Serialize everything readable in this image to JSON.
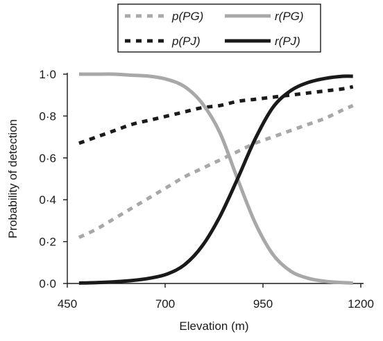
{
  "chart_data": {
    "type": "line",
    "xlabel": "Elevation (m)",
    "ylabel": "Probability of detection",
    "xlim": [
      450,
      1200
    ],
    "ylim": [
      0,
      1
    ],
    "x_ticks": [
      450,
      700,
      950,
      1200
    ],
    "x_tick_labels": [
      "450",
      "700",
      "950",
      "1200"
    ],
    "y_ticks": [
      0,
      0.2,
      0.4,
      0.6,
      0.8,
      1.0
    ],
    "y_tick_labels": [
      "0·0",
      "0·2",
      "0·4",
      "0·6",
      "0·8",
      "1·0"
    ],
    "legend_position": "top, above plot, two columns",
    "x": [
      480,
      525,
      570,
      615,
      660,
      705,
      750,
      795,
      840,
      885,
      930,
      975,
      1020,
      1065,
      1110,
      1155,
      1180
    ],
    "series": [
      {
        "name": "p(PG)",
        "legend_label": "p(PG)",
        "color": "#a8a8a8",
        "dash": "dashed",
        "values": [
          0.22,
          0.26,
          0.31,
          0.36,
          0.41,
          0.46,
          0.51,
          0.55,
          0.59,
          0.63,
          0.67,
          0.7,
          0.73,
          0.76,
          0.79,
          0.83,
          0.85
        ]
      },
      {
        "name": "p(PJ)",
        "legend_label": "p(PJ)",
        "color": "#1a1a1a",
        "dash": "dashed",
        "values": [
          0.67,
          0.7,
          0.73,
          0.76,
          0.78,
          0.8,
          0.82,
          0.84,
          0.85,
          0.87,
          0.88,
          0.89,
          0.9,
          0.91,
          0.92,
          0.93,
          0.94
        ]
      },
      {
        "name": "r(PG)",
        "legend_label": "r(PG)",
        "color": "#a8a8a8",
        "dash": "solid",
        "values": [
          1.0,
          1.0,
          1.0,
          0.995,
          0.99,
          0.975,
          0.94,
          0.86,
          0.72,
          0.5,
          0.29,
          0.14,
          0.06,
          0.025,
          0.01,
          0.004,
          0.002
        ]
      },
      {
        "name": "r(PJ)",
        "legend_label": "r(PJ)",
        "color": "#1a1a1a",
        "dash": "solid",
        "values": [
          0.002,
          0.004,
          0.008,
          0.014,
          0.025,
          0.045,
          0.09,
          0.18,
          0.32,
          0.5,
          0.69,
          0.84,
          0.92,
          0.96,
          0.98,
          0.99,
          0.99
        ]
      }
    ]
  }
}
